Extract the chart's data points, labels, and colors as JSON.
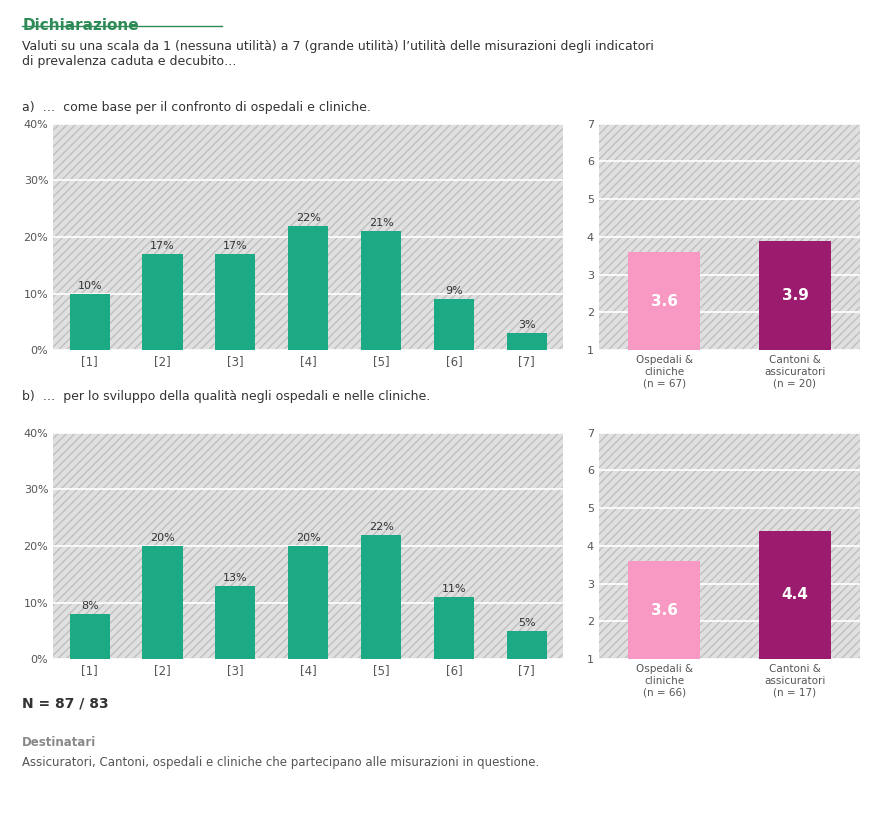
{
  "title": "Dichiarazione",
  "intro_text": "Valuti su una scala da 1 (nessuna utilità) a 7 (grande utilità) l’utilità delle misurazioni degli indicatori\ndi prevalenza caduta e decubito…",
  "subtitle_a": "a)  …  come base per il confronto di ospedali e cliniche.",
  "subtitle_b": "b)  …  per lo sviluppo della qualità negli ospedali e nelle cliniche.",
  "bar_color_green": "#1BAA84",
  "bar_color_pink": "#F799C3",
  "bar_color_magenta": "#9B1B6E",
  "bg_hatch_color": "#D8D8D8",
  "bg_hatch_pattern": "///",
  "page_background": "#FFFFFF",
  "section_a": {
    "bar_values": [
      10,
      17,
      17,
      22,
      21,
      9,
      3
    ],
    "labels": [
      "[1]",
      "[2]",
      "[3]",
      "[4]",
      "[5]",
      "[6]",
      "[7]"
    ],
    "pct_labels": [
      "10%",
      "17%",
      "17%",
      "22%",
      "21%",
      "9%",
      "3%"
    ],
    "avg_ospedali": 3.6,
    "avg_cantoni": 3.9,
    "label_ospedali": "Ospedali &\ncliniche\n(n = 67)",
    "label_cantoni": "Cantoni &\nassicuratori\n(n = 20)"
  },
  "section_b": {
    "bar_values": [
      8,
      20,
      13,
      20,
      22,
      11,
      5
    ],
    "labels": [
      "[1]",
      "[2]",
      "[3]",
      "[4]",
      "[5]",
      "[6]",
      "[7]"
    ],
    "pct_labels": [
      "8%",
      "20%",
      "13%",
      "20%",
      "22%",
      "11%",
      "5%"
    ],
    "avg_ospedali": 3.6,
    "avg_cantoni": 4.4,
    "label_ospedali": "Ospedali &\ncliniche\n(n = 66)",
    "label_cantoni": "Cantoni &\nassicuratori\n(n = 17)"
  },
  "footer_n": "N = 87 / 83",
  "footer_dest_title": "Destinatari",
  "footer_dest_text": "Assicuratori, Cantoni, ospedali e cliniche che partecipano alle misurazioni in questione."
}
